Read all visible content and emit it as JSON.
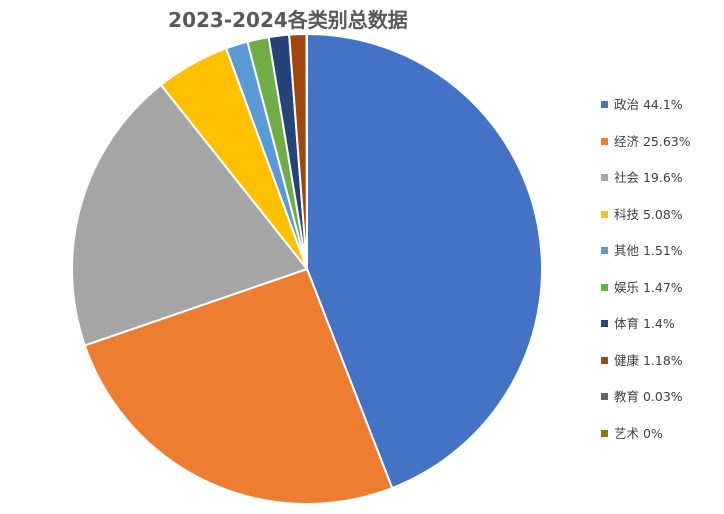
{
  "chart_data": {
    "type": "pie",
    "title": "2023-2024各类别总数据",
    "legend_position": "right",
    "slices": [
      {
        "name": "政治",
        "label": "政治 44.1%",
        "value": 44.1,
        "color": "#4472C4"
      },
      {
        "name": "经济",
        "label": "经济 25.63%",
        "value": 25.63,
        "color": "#ED7D31"
      },
      {
        "name": "社会",
        "label": "社会 19.6%",
        "value": 19.6,
        "color": "#A5A5A5"
      },
      {
        "name": "科技",
        "label": "科技 5.08%",
        "value": 5.08,
        "color": "#FFC000"
      },
      {
        "name": "其他",
        "label": "其他 1.51%",
        "value": 1.51,
        "color": "#5B9BD5"
      },
      {
        "name": "娱乐",
        "label": "娱乐 1.47%",
        "value": 1.47,
        "color": "#70AD47"
      },
      {
        "name": "体育",
        "label": "体育 1.4%",
        "value": 1.4,
        "color": "#264478"
      },
      {
        "name": "健康",
        "label": "健康 1.18%",
        "value": 1.18,
        "color": "#9E480E"
      },
      {
        "name": "教育",
        "label": "教育 0.03%",
        "value": 0.03,
        "color": "#636363"
      },
      {
        "name": "艺术",
        "label": "艺术 0%",
        "value": 0,
        "color": "#997300"
      }
    ]
  }
}
